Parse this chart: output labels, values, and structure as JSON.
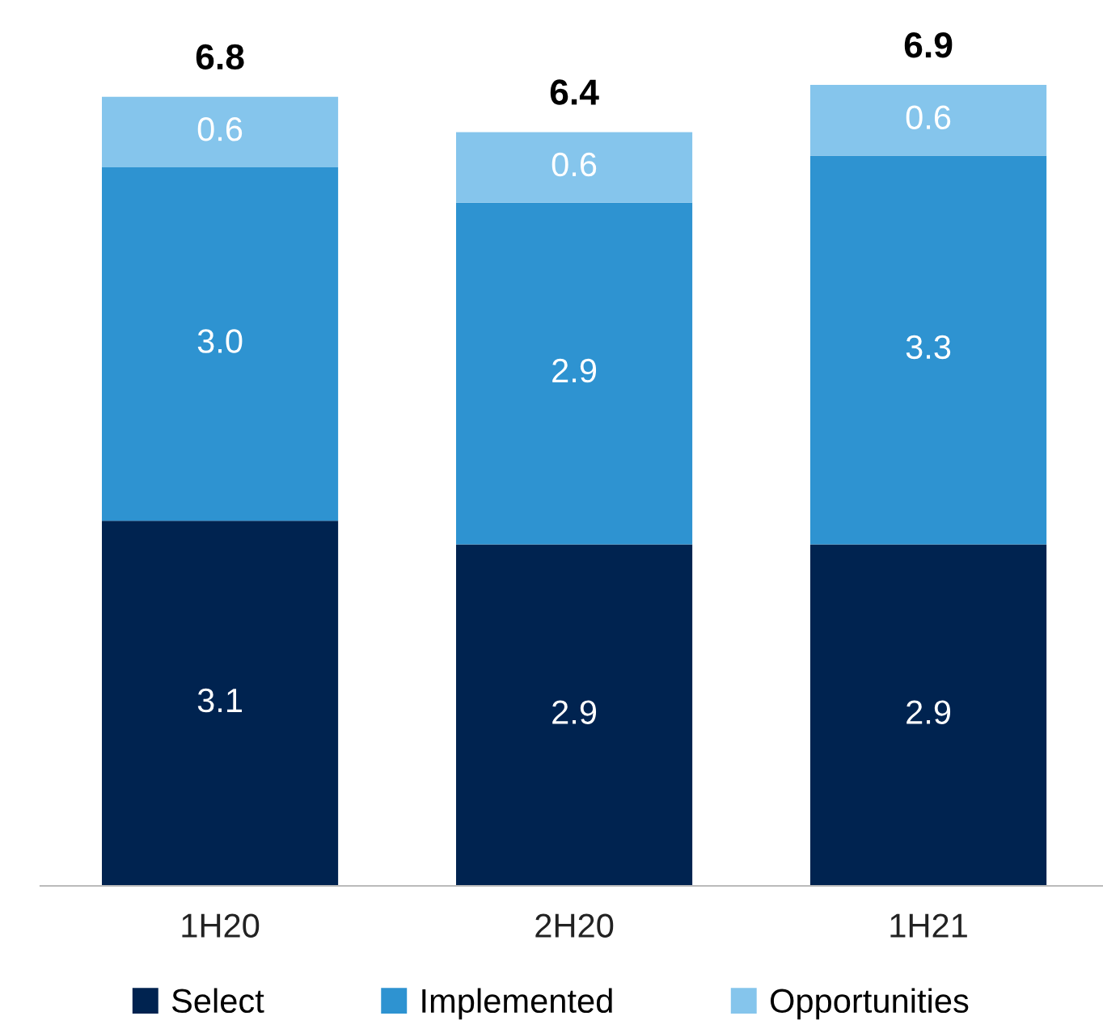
{
  "chart_data": {
    "type": "bar",
    "stacked": true,
    "categories": [
      "1H20",
      "2H20",
      "1H21"
    ],
    "series": [
      {
        "name": "Select",
        "color": "#002350",
        "values": [
          3.1,
          2.9,
          2.9
        ],
        "value_labels": [
          "3.1",
          "2.9",
          "2.9"
        ]
      },
      {
        "name": "Implemented",
        "color": "#2e93d1",
        "values": [
          3.0,
          2.9,
          3.3
        ],
        "value_labels": [
          "3.0",
          "2.9",
          "3.3"
        ]
      },
      {
        "name": "Opportunities",
        "color": "#85c5ec",
        "values": [
          0.6,
          0.6,
          0.6
        ],
        "value_labels": [
          "0.6",
          "0.6",
          "0.6"
        ]
      }
    ],
    "totals": [
      "6.8",
      "6.4",
      "6.9"
    ],
    "legend": "bottom",
    "grid": false
  }
}
